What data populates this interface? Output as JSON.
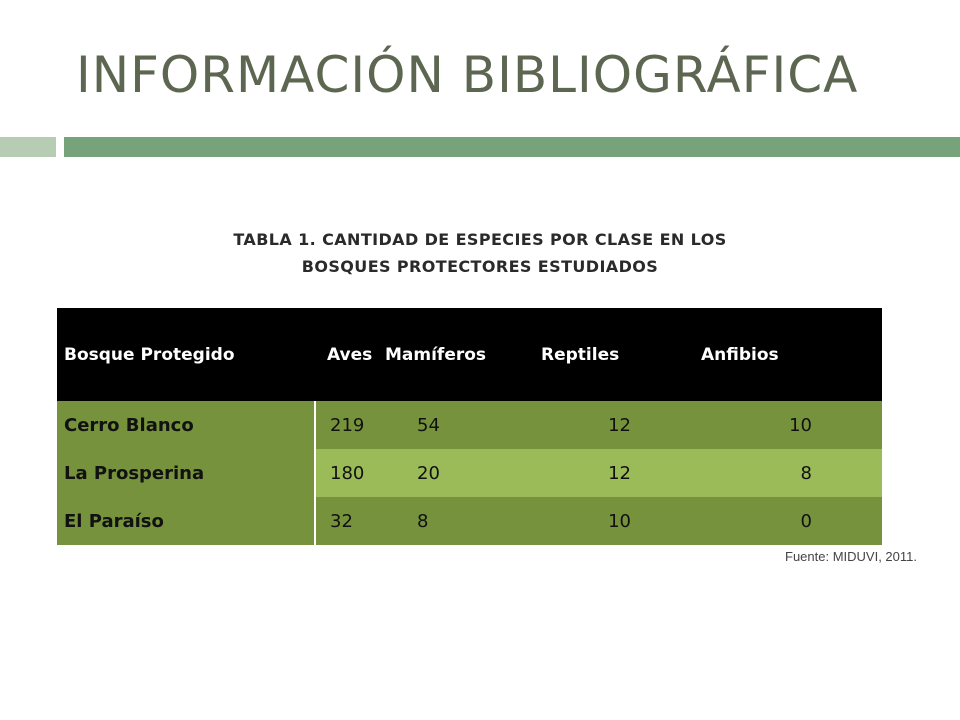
{
  "slide": {
    "title": "INFORMACIÓN BIBLIOGRÁFICA"
  },
  "table": {
    "caption_line1": "TABLA 1. CANTIDAD DE ESPECIES POR CLASE EN LOS",
    "caption_line2": "BOSQUES PROTECTORES ESTUDIADOS",
    "headers": [
      "Bosque Protegido",
      "Aves",
      "Mamíferos",
      "Reptiles",
      "Anfibios"
    ],
    "rows": [
      [
        "Cerro Blanco",
        "219",
        "54",
        "12",
        "10"
      ],
      [
        "La Prosperina",
        "180",
        "20",
        "12",
        "8"
      ],
      [
        "El Paraíso",
        "32",
        "8",
        "10",
        "0"
      ]
    ],
    "source": "Fuente: MIDUVI, 2011."
  },
  "colors": {
    "title_text": "#5c6650",
    "rule_light": "#b6cdb3",
    "rule_dark": "#77a37a",
    "header_bg": "#000000",
    "row_dark": "#76923c",
    "row_light": "#9bbb59"
  }
}
